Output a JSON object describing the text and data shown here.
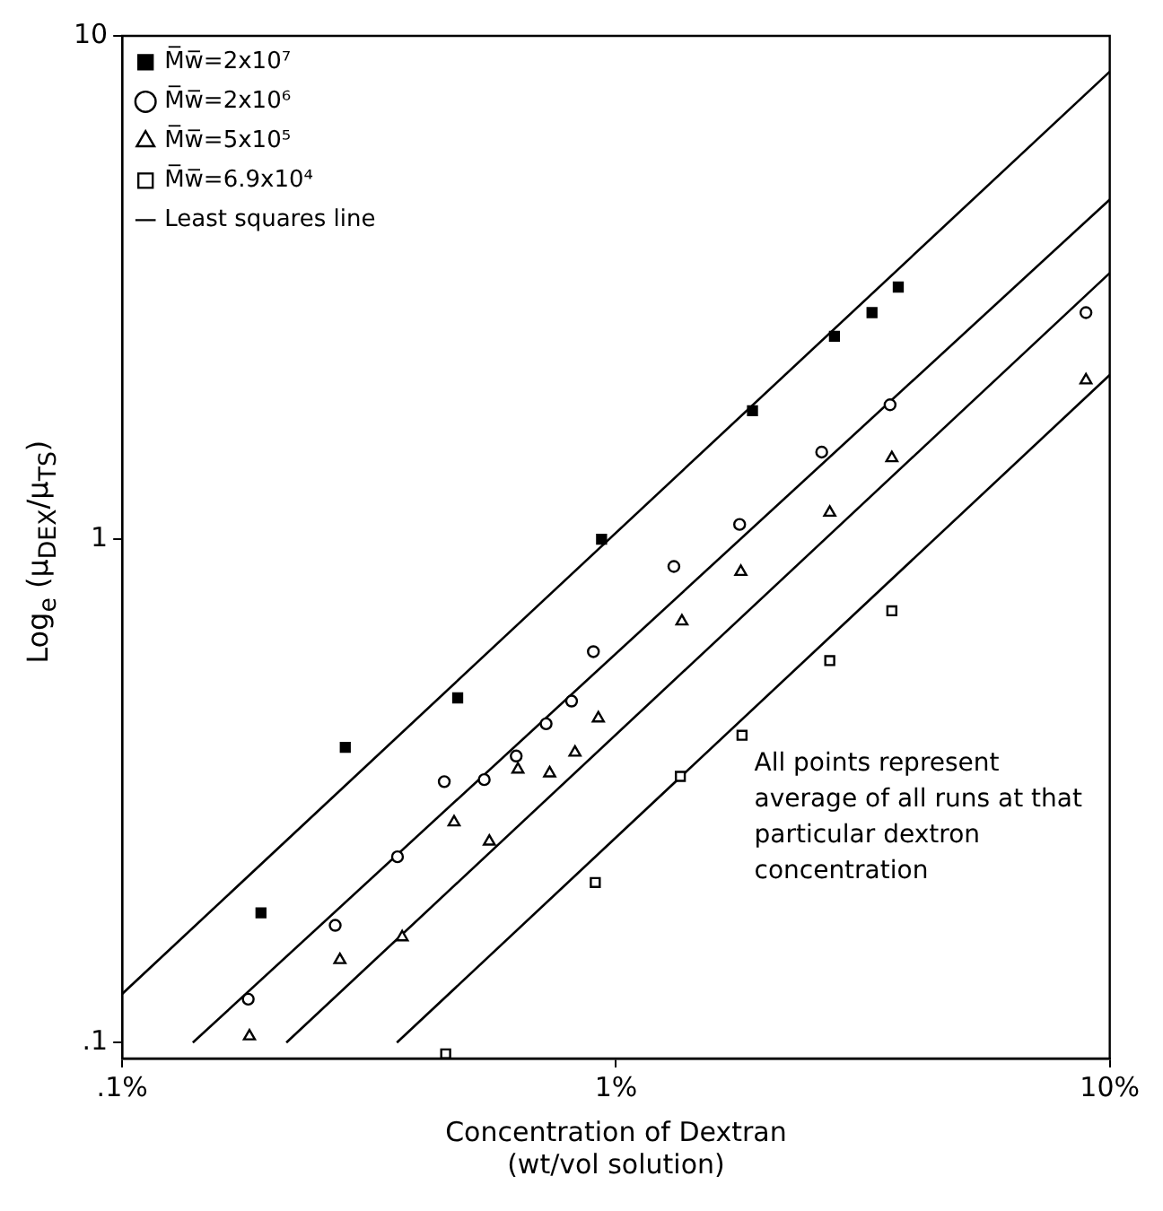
{
  "chart_data": {
    "type": "scatter",
    "xlabel": "Concentration of Dextran\n(wt/vol solution)",
    "ylabel": "Log$_{e}$ (μ$_{DEX}$/μ$_{TS}$)",
    "log": "xy",
    "grid": false,
    "legend": "top left",
    "xlim": [
      0.1,
      10
    ],
    "ylim": [
      0.093,
      10
    ],
    "xticks": [
      {
        "value": 0.1,
        "label": ".1%"
      },
      {
        "value": 1,
        "label": "1%"
      },
      {
        "value": 10,
        "label": "10%"
      }
    ],
    "yticks": [
      {
        "value": 0.1,
        "label": ".1"
      },
      1,
      10
    ],
    "annotations": [
      "All points represent average of all runs at that particular dextron concentration"
    ],
    "series": [
      {
        "name": "M̅w̅=2x10⁷",
        "color": "#000000",
        "marker": "square",
        "x": [
          0.191,
          0.283,
          0.478,
          0.935,
          1.89,
          2.77,
          3.3,
          3.73
        ],
        "values": [
          0.181,
          0.386,
          0.484,
          1.0,
          1.8,
          2.53,
          2.82,
          3.17
        ]
      },
      {
        "name": "M̅w̅=2x10⁶",
        "color": "#000000",
        "marker": "circle",
        "x": [
          0.18,
          0.27,
          0.361,
          0.449,
          0.541,
          0.628,
          0.722,
          0.813,
          0.9,
          1.31,
          1.78,
          2.61,
          3.59,
          8.95
        ],
        "values": [
          0.122,
          0.171,
          0.234,
          0.33,
          0.333,
          0.371,
          0.43,
          0.477,
          0.598,
          0.883,
          1.07,
          1.49,
          1.85,
          2.82
        ]
      },
      {
        "name": "M̅w̅=5x10⁵",
        "color": "#000000",
        "marker": "triangle",
        "x": [
          0.181,
          0.276,
          0.369,
          0.47,
          0.554,
          0.633,
          0.734,
          0.826,
          0.921,
          1.36,
          1.79,
          2.71,
          3.62,
          8.95
        ],
        "values": [
          0.103,
          0.146,
          0.162,
          0.274,
          0.251,
          0.349,
          0.343,
          0.377,
          0.441,
          0.687,
          0.862,
          1.13,
          1.45,
          2.07
        ]
      },
      {
        "name": "M̅w̅=6.9x10⁴",
        "color": "#000000",
        "marker": "square",
        "x": [
          0.452,
          0.908,
          1.35,
          1.8,
          2.71,
          3.62
        ],
        "values": [
          0.095,
          0.208,
          0.338,
          0.408,
          0.574,
          0.721
        ]
      },
      {
        "name": "Least squares line",
        "type": "line",
        "color": "#000000",
        "marker": "none",
        "line_style": "solid",
        "x": [
          0.1,
          10
        ],
        "values": [
          0.125,
          8.49
        ]
      },
      {
        "type": "line",
        "color": "#000000",
        "marker": "none",
        "line_style": "solid",
        "x": [
          0.139,
          10
        ],
        "values": [
          0.1,
          4.73
        ]
      },
      {
        "type": "line",
        "color": "#000000",
        "marker": "none",
        "line_style": "solid",
        "x": [
          0.215,
          10
        ],
        "values": [
          0.1,
          3.38
        ]
      },
      {
        "type": "line",
        "color": "#000000",
        "marker": "none",
        "line_style": "solid",
        "x": [
          0.36,
          10
        ],
        "values": [
          0.1,
          2.12
        ]
      }
    ]
  }
}
